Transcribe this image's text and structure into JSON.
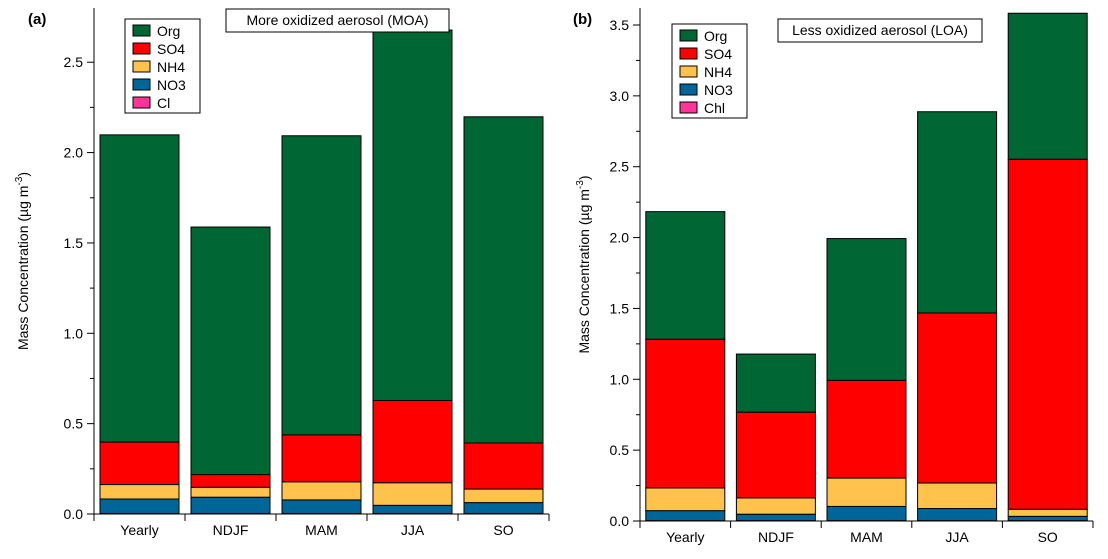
{
  "chart_data": [
    {
      "panel_label": "(a)",
      "type": "bar",
      "stacked": true,
      "title": "More oxidized aerosol (MOA)",
      "ylabel": "Mass Concentration (µg m",
      "ylabel_sup": "-3",
      "ylabel_close": ")",
      "categories": [
        "Yearly",
        "NDJF",
        "MAM",
        "JJA",
        "SO"
      ],
      "ylim": [
        0,
        2.8
      ],
      "yticks": [
        0.0,
        0.5,
        1.0,
        1.5,
        2.0,
        2.5
      ],
      "yticklabels": [
        "0.0",
        "0.5",
        "1.0",
        "1.5",
        "2.0",
        "2.5"
      ],
      "legend_position": "top-left",
      "series": [
        {
          "name": "Cl",
          "color": "#ff3399",
          "values": [
            0.003,
            0.003,
            0.003,
            0.003,
            0.003
          ]
        },
        {
          "name": "NO3",
          "color": "#006699",
          "values": [
            0.08,
            0.09,
            0.075,
            0.045,
            0.06
          ]
        },
        {
          "name": "NH4",
          "color": "#ffc34d",
          "values": [
            0.08,
            0.055,
            0.1,
            0.125,
            0.075
          ]
        },
        {
          "name": "SO4",
          "color": "#ff0000",
          "values": [
            0.235,
            0.07,
            0.26,
            0.455,
            0.255
          ]
        },
        {
          "name": "Org",
          "color": "#006633",
          "values": [
            1.7,
            1.37,
            1.655,
            2.05,
            1.805
          ]
        }
      ]
    },
    {
      "panel_label": "(b)",
      "type": "bar",
      "stacked": true,
      "title": "Less oxidized aerosol (LOA)",
      "ylabel": "Mass Concentration (µg m",
      "ylabel_sup": "-3",
      "ylabel_close": ")",
      "categories": [
        "Yearly",
        "NDJF",
        "MAM",
        "JJA",
        "SO"
      ],
      "ylim": [
        0,
        3.62
      ],
      "yticks": [
        0.0,
        0.5,
        1.0,
        1.5,
        2.0,
        2.5,
        3.0,
        3.5
      ],
      "yticklabels": [
        "0.0",
        "0.5",
        "1.0",
        "1.5",
        "2.0",
        "2.5",
        "3.0",
        "3.5"
      ],
      "legend_position": "top-left",
      "series": [
        {
          "name": "Chl",
          "color": "#ff3399",
          "values": [
            0.003,
            0.003,
            0.003,
            0.003,
            0.003
          ]
        },
        {
          "name": "NO3",
          "color": "#006699",
          "values": [
            0.07,
            0.045,
            0.1,
            0.085,
            0.03
          ]
        },
        {
          "name": "NH4",
          "color": "#ffc34d",
          "values": [
            0.16,
            0.115,
            0.2,
            0.18,
            0.05
          ]
        },
        {
          "name": "SO4",
          "color": "#ff0000",
          "values": [
            1.05,
            0.605,
            0.69,
            1.2,
            2.47
          ]
        },
        {
          "name": "Org",
          "color": "#006633",
          "values": [
            0.9,
            0.41,
            1.0,
            1.42,
            1.03
          ]
        }
      ]
    }
  ]
}
